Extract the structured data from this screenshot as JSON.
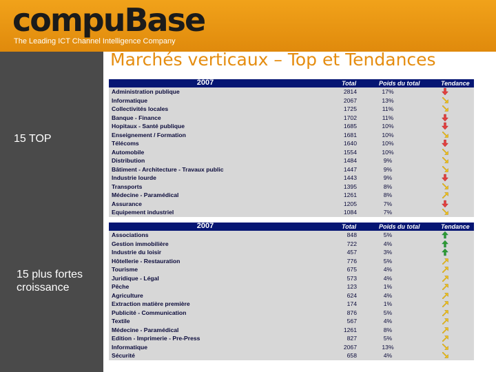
{
  "header": {
    "logo": "compuBase",
    "tagline": "The Leading ICT Channel Intelligence Company"
  },
  "title": "Marchés verticaux – Top et Tendances",
  "sidebar": {
    "label_top": "15 TOP",
    "label_bottom": "15 plus fortes croissance"
  },
  "table_top": {
    "year": "2007",
    "col_total": "Total",
    "col_poids": "Poids du total",
    "col_tendance": "Tendance",
    "rows": [
      {
        "name": "Administration publique",
        "total": "2814",
        "poids": "17%",
        "trend": "down-red"
      },
      {
        "name": "Informatique",
        "total": "2067",
        "poids": "13%",
        "trend": "diag-down"
      },
      {
        "name": "Collectivités locales",
        "total": "1725",
        "poids": "11%",
        "trend": "diag-down"
      },
      {
        "name": "Banque - Finance",
        "total": "1702",
        "poids": "11%",
        "trend": "down-red"
      },
      {
        "name": "Hopitaux - Santé publique",
        "total": "1685",
        "poids": "10%",
        "trend": "down-red"
      },
      {
        "name": "Enseignement / Formation",
        "total": "1681",
        "poids": "10%",
        "trend": "diag-down"
      },
      {
        "name": "Télécoms",
        "total": "1640",
        "poids": "10%",
        "trend": "down-red"
      },
      {
        "name": "Automobile",
        "total": "1554",
        "poids": "10%",
        "trend": "diag-down"
      },
      {
        "name": "Distribution",
        "total": "1484",
        "poids": "9%",
        "trend": "diag-down"
      },
      {
        "name": "Bâtiment - Architecture - Travaux public",
        "total": "1447",
        "poids": "9%",
        "trend": "diag-down"
      },
      {
        "name": "Industrie lourde",
        "total": "1443",
        "poids": "9%",
        "trend": "down-red"
      },
      {
        "name": "Transports",
        "total": "1395",
        "poids": "8%",
        "trend": "diag-down"
      },
      {
        "name": "Médecine - Paramédical",
        "total": "1261",
        "poids": "8%",
        "trend": "diag-up"
      },
      {
        "name": "Assurance",
        "total": "1205",
        "poids": "7%",
        "trend": "down-red"
      },
      {
        "name": "Equipement industriel",
        "total": "1084",
        "poids": "7%",
        "trend": "diag-down"
      }
    ]
  },
  "table_bottom": {
    "year": "2007",
    "col_total": "Total",
    "col_poids": "Poids du total",
    "col_tendance": "Tendance",
    "rows": [
      {
        "name": "Associations",
        "total": "848",
        "poids": "5%",
        "trend": "up-green"
      },
      {
        "name": "Gestion immobilière",
        "total": "722",
        "poids": "4%",
        "trend": "up-green"
      },
      {
        "name": "Industrie du loisir",
        "total": "457",
        "poids": "3%",
        "trend": "up-green"
      },
      {
        "name": "Hôtellerie - Restauration",
        "total": "776",
        "poids": "5%",
        "trend": "diag-up"
      },
      {
        "name": "Tourisme",
        "total": "675",
        "poids": "4%",
        "trend": "diag-up"
      },
      {
        "name": "Juridique - Légal",
        "total": "573",
        "poids": "4%",
        "trend": "diag-up"
      },
      {
        "name": "Pêche",
        "total": "123",
        "poids": "1%",
        "trend": "diag-up"
      },
      {
        "name": "Agriculture",
        "total": "624",
        "poids": "4%",
        "trend": "diag-up"
      },
      {
        "name": "Extraction matière première",
        "total": "174",
        "poids": "1%",
        "trend": "diag-up"
      },
      {
        "name": "Publicité - Communication",
        "total": "876",
        "poids": "5%",
        "trend": "diag-up"
      },
      {
        "name": "Textile",
        "total": "567",
        "poids": "4%",
        "trend": "diag-up"
      },
      {
        "name": "Médecine - Paramédical",
        "total": "1261",
        "poids": "8%",
        "trend": "diag-up"
      },
      {
        "name": "Edition - Imprimerie - Pre-Press",
        "total": "827",
        "poids": "5%",
        "trend": "diag-up"
      },
      {
        "name": "Informatique",
        "total": "2067",
        "poids": "13%",
        "trend": "diag-down"
      },
      {
        "name": "Sécurité",
        "total": "658",
        "poids": "4%",
        "trend": "diag-down"
      }
    ]
  },
  "colors": {
    "orange": "#e58d10",
    "navy": "#061673",
    "red": "#e24040",
    "green": "#2f9a2f",
    "yellow": "#f2c21a"
  }
}
